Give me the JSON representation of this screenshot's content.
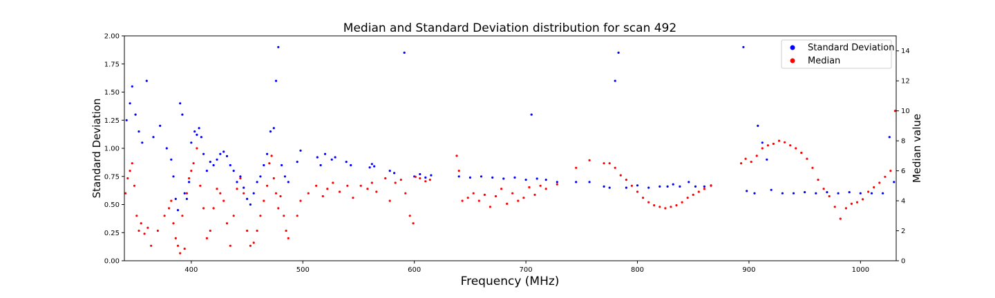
{
  "chart_data": {
    "type": "scatter",
    "title": "Median and Standard Deviation distribution for scan 492",
    "xlabel": "Frequency (MHz)",
    "ylabel_left": "Standard Deviation",
    "ylabel_right": "Median value",
    "xlim": [
      340,
      1032
    ],
    "ylim_left": [
      0,
      2.0
    ],
    "ylim_right": [
      0,
      15
    ],
    "x_ticks": [
      400,
      500,
      600,
      700,
      800,
      900,
      1000
    ],
    "y_left_ticks": [
      "0.00",
      "0.25",
      "0.50",
      "0.75",
      "1.00",
      "1.25",
      "1.50",
      "1.75",
      "2.00"
    ],
    "y_right_ticks": [
      "0",
      "2",
      "4",
      "6",
      "8",
      "10",
      "12",
      "14"
    ],
    "grid": false,
    "legend_position": "top-right",
    "series": [
      {
        "name": "Standard Deviation",
        "axis": "left",
        "color": "#0000ff",
        "points": [
          [
            342,
            1.25
          ],
          [
            345,
            1.4
          ],
          [
            347,
            1.55
          ],
          [
            350,
            1.3
          ],
          [
            353,
            1.15
          ],
          [
            356,
            1.05
          ],
          [
            360,
            1.6
          ],
          [
            366,
            1.1
          ],
          [
            372,
            1.2
          ],
          [
            378,
            1.0
          ],
          [
            382,
            0.9
          ],
          [
            384,
            0.75
          ],
          [
            386,
            0.55
          ],
          [
            388,
            0.45
          ],
          [
            390,
            1.4
          ],
          [
            392,
            1.3
          ],
          [
            394,
            0.6
          ],
          [
            396,
            0.55
          ],
          [
            398,
            0.7
          ],
          [
            400,
            1.05
          ],
          [
            403,
            1.15
          ],
          [
            405,
            1.12
          ],
          [
            407,
            1.18
          ],
          [
            409,
            1.1
          ],
          [
            411,
            0.95
          ],
          [
            414,
            0.8
          ],
          [
            417,
            0.88
          ],
          [
            420,
            0.85
          ],
          [
            423,
            0.9
          ],
          [
            426,
            0.95
          ],
          [
            429,
            0.97
          ],
          [
            432,
            0.93
          ],
          [
            435,
            0.85
          ],
          [
            438,
            0.8
          ],
          [
            441,
            0.7
          ],
          [
            444,
            0.75
          ],
          [
            447,
            0.65
          ],
          [
            450,
            0.55
          ],
          [
            453,
            0.5
          ],
          [
            456,
            0.6
          ],
          [
            459,
            0.7
          ],
          [
            462,
            0.75
          ],
          [
            465,
            0.85
          ],
          [
            468,
            0.95
          ],
          [
            471,
            1.15
          ],
          [
            474,
            1.18
          ],
          [
            476,
            1.6
          ],
          [
            478,
            1.9
          ],
          [
            481,
            0.85
          ],
          [
            484,
            0.75
          ],
          [
            487,
            0.7
          ],
          [
            495,
            0.88
          ],
          [
            498,
            0.98
          ],
          [
            513,
            0.92
          ],
          [
            516,
            0.85
          ],
          [
            520,
            0.95
          ],
          [
            526,
            0.9
          ],
          [
            529,
            0.92
          ],
          [
            539,
            0.88
          ],
          [
            543,
            0.85
          ],
          [
            560,
            0.83
          ],
          [
            562,
            0.86
          ],
          [
            564,
            0.84
          ],
          [
            578,
            0.8
          ],
          [
            582,
            0.78
          ],
          [
            591,
            1.85
          ],
          [
            600,
            0.75
          ],
          [
            605,
            0.77
          ],
          [
            610,
            0.74
          ],
          [
            615,
            0.76
          ],
          [
            640,
            0.75
          ],
          [
            650,
            0.74
          ],
          [
            660,
            0.75
          ],
          [
            670,
            0.74
          ],
          [
            680,
            0.73
          ],
          [
            690,
            0.74
          ],
          [
            700,
            0.72
          ],
          [
            705,
            1.3
          ],
          [
            710,
            0.73
          ],
          [
            718,
            0.72
          ],
          [
            728,
            0.7
          ],
          [
            745,
            0.7
          ],
          [
            757,
            0.7
          ],
          [
            770,
            0.66
          ],
          [
            775,
            0.65
          ],
          [
            780,
            1.6
          ],
          [
            783,
            1.85
          ],
          [
            790,
            0.65
          ],
          [
            800,
            0.67
          ],
          [
            810,
            0.65
          ],
          [
            820,
            0.66
          ],
          [
            827,
            0.66
          ],
          [
            832,
            0.68
          ],
          [
            838,
            0.66
          ],
          [
            846,
            0.7
          ],
          [
            852,
            0.66
          ],
          [
            860,
            0.66
          ],
          [
            866,
            0.67
          ],
          [
            895,
            1.9
          ],
          [
            898,
            0.62
          ],
          [
            905,
            0.6
          ],
          [
            908,
            1.2
          ],
          [
            912,
            1.05
          ],
          [
            916,
            0.9
          ],
          [
            920,
            0.63
          ],
          [
            930,
            0.6
          ],
          [
            940,
            0.6
          ],
          [
            950,
            0.61
          ],
          [
            960,
            0.6
          ],
          [
            970,
            0.61
          ],
          [
            980,
            0.6
          ],
          [
            990,
            0.61
          ],
          [
            1000,
            0.6
          ],
          [
            1010,
            0.6
          ],
          [
            1020,
            0.6
          ],
          [
            1026,
            1.1
          ],
          [
            1030,
            0.7
          ]
        ]
      },
      {
        "name": "Median",
        "axis": "right",
        "color": "#ff0000",
        "points": [
          [
            341,
            4.5
          ],
          [
            343,
            5.5
          ],
          [
            345,
            6.0
          ],
          [
            347,
            6.5
          ],
          [
            349,
            5.0
          ],
          [
            351,
            3.0
          ],
          [
            353,
            2.0
          ],
          [
            355,
            2.5
          ],
          [
            358,
            1.8
          ],
          [
            361,
            2.2
          ],
          [
            364,
            1.0
          ],
          [
            370,
            2.0
          ],
          [
            376,
            3.0
          ],
          [
            380,
            3.5
          ],
          [
            382,
            4.0
          ],
          [
            384,
            2.5
          ],
          [
            386,
            1.5
          ],
          [
            388,
            1.0
          ],
          [
            390,
            0.5
          ],
          [
            392,
            3.0
          ],
          [
            394,
            0.8
          ],
          [
            396,
            4.5
          ],
          [
            398,
            5.5
          ],
          [
            400,
            6.0
          ],
          [
            402,
            6.5
          ],
          [
            405,
            7.5
          ],
          [
            408,
            5.0
          ],
          [
            411,
            3.5
          ],
          [
            414,
            1.5
          ],
          [
            417,
            2.0
          ],
          [
            420,
            3.5
          ],
          [
            423,
            4.8
          ],
          [
            426,
            4.5
          ],
          [
            429,
            4.0
          ],
          [
            432,
            2.5
          ],
          [
            435,
            1.0
          ],
          [
            438,
            3.0
          ],
          [
            441,
            4.8
          ],
          [
            444,
            5.5
          ],
          [
            447,
            4.5
          ],
          [
            450,
            2.0
          ],
          [
            453,
            1.0
          ],
          [
            456,
            1.2
          ],
          [
            459,
            2.0
          ],
          [
            462,
            3.0
          ],
          [
            465,
            4.0
          ],
          [
            468,
            5.0
          ],
          [
            470,
            6.5
          ],
          [
            472,
            7.0
          ],
          [
            474,
            5.5
          ],
          [
            476,
            4.5
          ],
          [
            478,
            3.5
          ],
          [
            480,
            4.3
          ],
          [
            483,
            3.0
          ],
          [
            485,
            2.0
          ],
          [
            487,
            1.5
          ],
          [
            495,
            3.0
          ],
          [
            498,
            4.0
          ],
          [
            505,
            4.5
          ],
          [
            512,
            5.0
          ],
          [
            518,
            4.3
          ],
          [
            522,
            4.8
          ],
          [
            527,
            5.2
          ],
          [
            533,
            4.6
          ],
          [
            540,
            5.0
          ],
          [
            545,
            4.2
          ],
          [
            552,
            5.0
          ],
          [
            558,
            4.8
          ],
          [
            562,
            5.2
          ],
          [
            566,
            4.6
          ],
          [
            574,
            5.5
          ],
          [
            578,
            4.0
          ],
          [
            583,
            5.2
          ],
          [
            588,
            5.4
          ],
          [
            592,
            4.5
          ],
          [
            596,
            3.0
          ],
          [
            599,
            2.5
          ],
          [
            601,
            5.6
          ],
          [
            605,
            5.5
          ],
          [
            610,
            5.3
          ],
          [
            614,
            5.4
          ],
          [
            638,
            7.0
          ],
          [
            640,
            6.0
          ],
          [
            643,
            4.0
          ],
          [
            648,
            4.2
          ],
          [
            653,
            4.5
          ],
          [
            658,
            4.0
          ],
          [
            663,
            4.4
          ],
          [
            668,
            3.6
          ],
          [
            673,
            4.3
          ],
          [
            678,
            4.8
          ],
          [
            683,
            3.8
          ],
          [
            688,
            4.5
          ],
          [
            693,
            4.0
          ],
          [
            698,
            4.2
          ],
          [
            703,
            4.9
          ],
          [
            708,
            4.4
          ],
          [
            713,
            5.0
          ],
          [
            718,
            4.8
          ],
          [
            728,
            5.1
          ],
          [
            745,
            6.2
          ],
          [
            757,
            6.7
          ],
          [
            770,
            6.5
          ],
          [
            775,
            6.5
          ],
          [
            780,
            6.2
          ],
          [
            785,
            5.7
          ],
          [
            790,
            5.4
          ],
          [
            795,
            5.0
          ],
          [
            800,
            4.6
          ],
          [
            805,
            4.2
          ],
          [
            810,
            3.9
          ],
          [
            815,
            3.7
          ],
          [
            820,
            3.6
          ],
          [
            825,
            3.5
          ],
          [
            830,
            3.6
          ],
          [
            835,
            3.7
          ],
          [
            840,
            3.9
          ],
          [
            845,
            4.2
          ],
          [
            850,
            4.4
          ],
          [
            855,
            4.6
          ],
          [
            860,
            4.8
          ],
          [
            866,
            5.0
          ],
          [
            893,
            6.5
          ],
          [
            897,
            6.8
          ],
          [
            902,
            6.6
          ],
          [
            907,
            7.0
          ],
          [
            912,
            7.5
          ],
          [
            917,
            7.7
          ],
          [
            922,
            7.8
          ],
          [
            927,
            8.0
          ],
          [
            932,
            7.9
          ],
          [
            937,
            7.7
          ],
          [
            942,
            7.5
          ],
          [
            947,
            7.2
          ],
          [
            952,
            6.8
          ],
          [
            957,
            6.2
          ],
          [
            962,
            5.4
          ],
          [
            967,
            4.8
          ],
          [
            972,
            4.3
          ],
          [
            977,
            3.6
          ],
          [
            982,
            2.8
          ],
          [
            987,
            3.5
          ],
          [
            992,
            3.8
          ],
          [
            997,
            3.9
          ],
          [
            1002,
            4.1
          ],
          [
            1007,
            4.6
          ],
          [
            1012,
            4.9
          ],
          [
            1017,
            5.2
          ],
          [
            1022,
            5.6
          ],
          [
            1027,
            6.0
          ],
          [
            1031,
            10.0
          ]
        ]
      }
    ]
  }
}
